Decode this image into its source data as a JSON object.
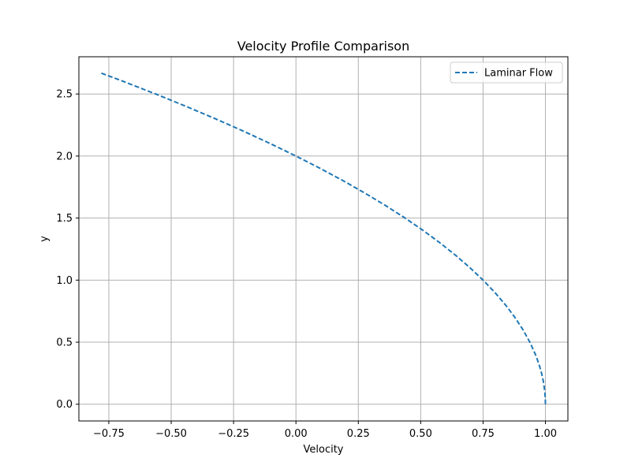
{
  "chart_data": {
    "type": "line",
    "title": "Velocity Profile Comparison",
    "xlabel": "Velocity",
    "ylabel": "y",
    "xlim": [
      -0.87,
      1.09
    ],
    "ylim": [
      -0.135,
      2.8
    ],
    "x_ticks": [
      -0.75,
      -0.5,
      -0.25,
      0.0,
      0.25,
      0.5,
      0.75,
      1.0
    ],
    "x_tick_labels": [
      "−0.75",
      "−0.50",
      "−0.25",
      "0.00",
      "0.25",
      "0.50",
      "0.75",
      "1.00"
    ],
    "y_ticks": [
      0.0,
      0.5,
      1.0,
      1.5,
      2.0,
      2.5
    ],
    "y_tick_labels": [
      "0.0",
      "0.5",
      "1.0",
      "1.5",
      "2.0",
      "2.5"
    ],
    "grid": true,
    "legend_position": "upper right",
    "colors": {
      "series": "#1f77b4",
      "grid": "#b0b0b0"
    },
    "series": [
      {
        "name": "Laminar Flow",
        "style": "dashed",
        "x": [
          1.0,
          0.9996,
          0.9975,
          0.9936,
          0.991,
          0.9844,
          0.9775,
          0.9664,
          0.96,
          0.9375,
          0.91,
          0.8775,
          0.84,
          0.7975,
          0.75,
          0.6975,
          0.64,
          0.5775,
          0.51,
          0.4375,
          0.36,
          0.2775,
          0.19,
          0.0975,
          0.0,
          -0.1025,
          -0.21,
          -0.3225,
          -0.44,
          -0.5625,
          -0.69,
          -0.78
        ],
        "y": [
          0.0,
          0.02,
          0.05,
          0.08,
          0.095,
          0.125,
          0.15,
          0.183,
          0.2,
          0.25,
          0.3,
          0.35,
          0.4,
          0.45,
          0.5,
          0.55,
          0.6,
          0.65,
          0.7,
          0.75,
          0.8,
          0.85,
          0.9,
          0.95,
          1.0,
          1.05,
          1.1,
          1.15,
          1.2,
          1.25,
          1.3,
          1.334
        ],
        "y_transform": "2y"
      }
    ]
  }
}
